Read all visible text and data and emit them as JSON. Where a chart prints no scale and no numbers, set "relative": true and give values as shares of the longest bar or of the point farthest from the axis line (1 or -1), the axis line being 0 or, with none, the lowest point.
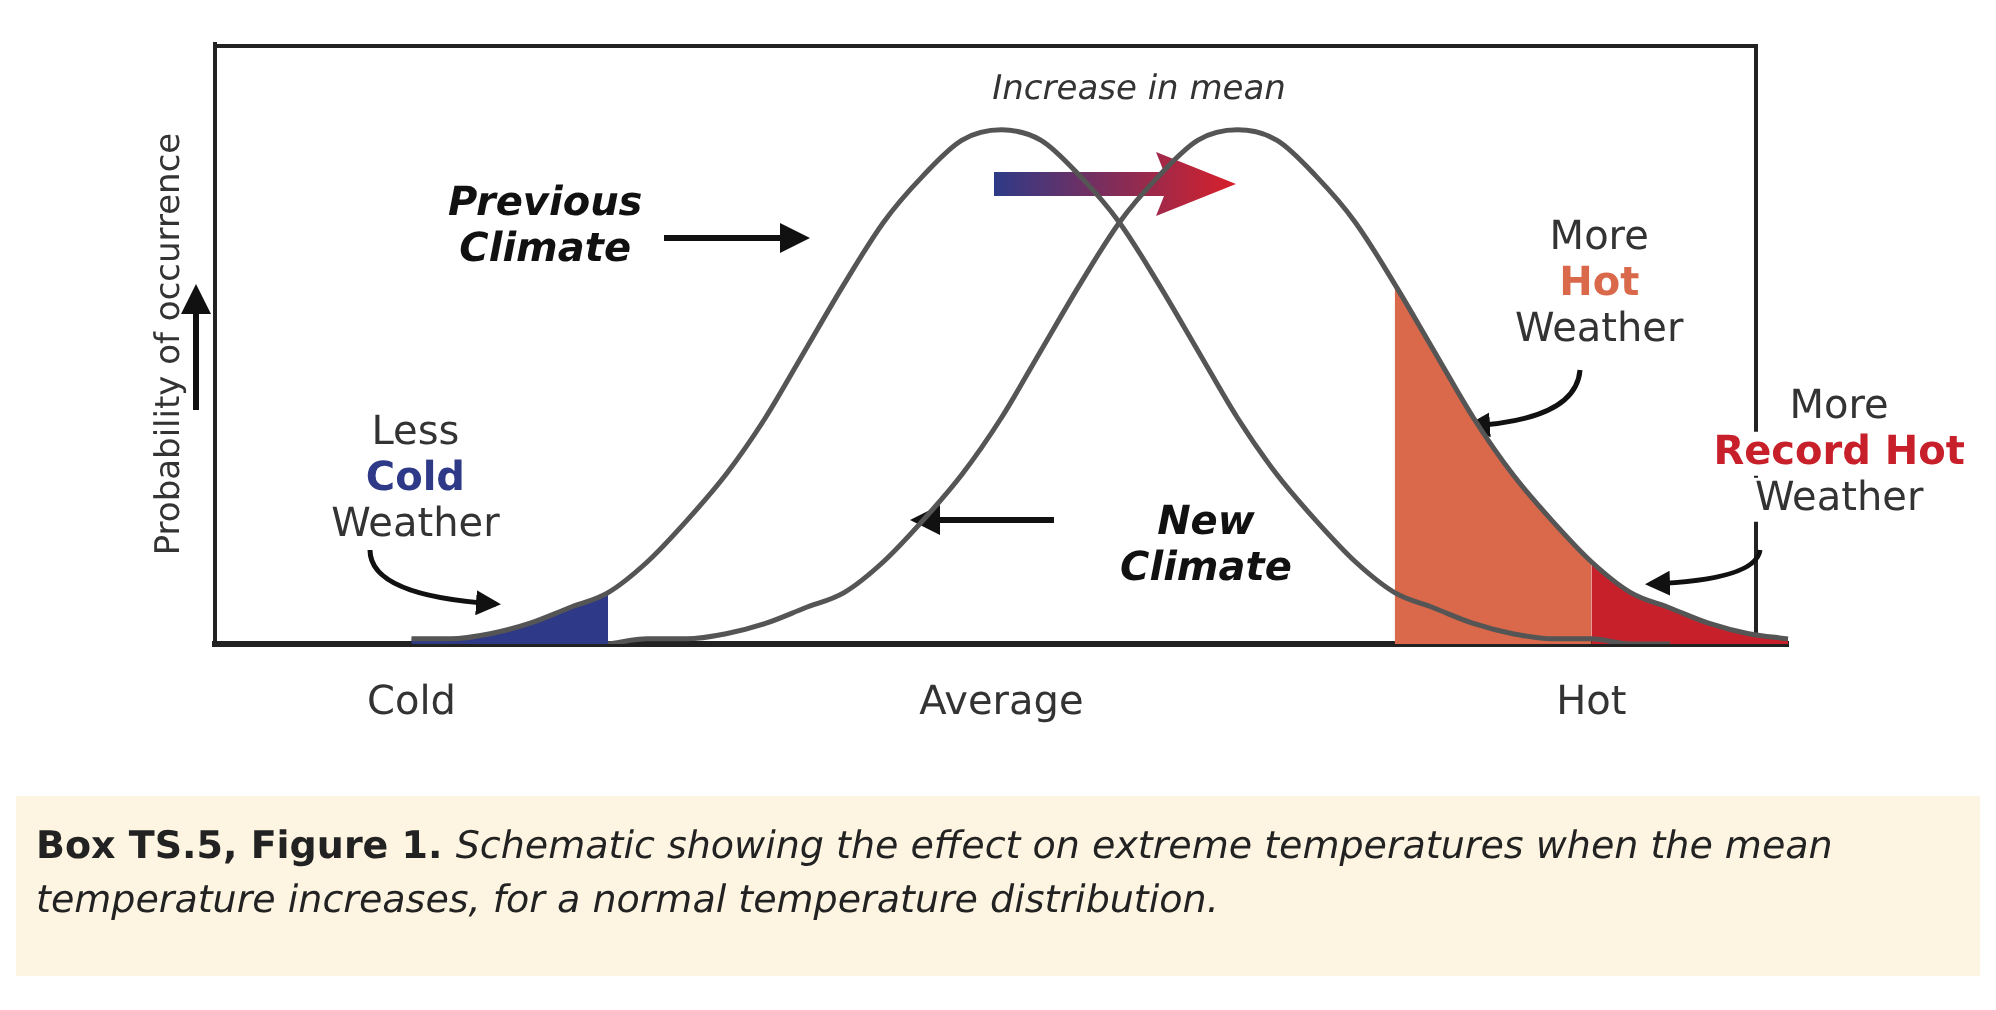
{
  "chart_data": {
    "type": "line",
    "relative": true,
    "ylabel": "Probability of occurrence",
    "categories": [
      null,
      null,
      null,
      null,
      null,
      "Cold",
      null,
      null,
      null,
      null,
      null,
      null,
      null,
      null,
      null,
      null,
      null,
      null,
      null,
      null,
      "Average",
      null,
      null,
      null,
      null,
      null,
      null,
      null,
      null,
      null,
      null,
      null,
      null,
      null,
      null,
      "Hot",
      null,
      null,
      null,
      null,
      null
    ],
    "series": [
      {
        "type": "area",
        "color": "#2e3a87",
        "values": [
          null,
          null,
          null,
          null,
          null,
          0.01,
          0.01,
          0.02,
          0.04,
          0.07,
          0.1,
          null,
          null,
          null,
          null,
          null,
          null,
          null,
          null,
          null,
          null,
          null,
          null,
          null,
          null,
          null,
          null,
          null,
          null,
          null,
          null,
          null,
          null,
          null,
          null,
          null,
          null,
          null,
          null,
          null,
          null
        ]
      },
      {
        "type": "area",
        "color": "#d9694a",
        "values": [
          null,
          null,
          null,
          null,
          null,
          null,
          null,
          null,
          null,
          null,
          null,
          null,
          null,
          null,
          null,
          null,
          null,
          null,
          null,
          null,
          null,
          null,
          null,
          null,
          null,
          null,
          null,
          null,
          null,
          null,
          0.7,
          0.57,
          0.44,
          0.33,
          0.24,
          0.16,
          null,
          null,
          null,
          null,
          null
        ]
      },
      {
        "type": "area",
        "color": "#c8202a",
        "values": [
          null,
          null,
          null,
          null,
          null,
          null,
          null,
          null,
          null,
          null,
          null,
          null,
          null,
          null,
          null,
          null,
          null,
          null,
          null,
          null,
          null,
          null,
          null,
          null,
          null,
          null,
          null,
          null,
          null,
          null,
          null,
          null,
          null,
          null,
          null,
          0.16,
          0.1,
          0.07,
          0.04,
          0.02,
          0.01
        ]
      },
      {
        "type": "line",
        "color": "#555555",
        "values": [
          null,
          null,
          null,
          null,
          null,
          0.01,
          0.01,
          0.02,
          0.04,
          0.07,
          0.1,
          0.16,
          0.24,
          0.33,
          0.44,
          0.57,
          0.7,
          0.82,
          0.91,
          0.98,
          1,
          0.98,
          0.91,
          0.82,
          0.7,
          0.57,
          0.44,
          0.33,
          0.24,
          0.16,
          0.1,
          0.07,
          0.04,
          0.02,
          0.01,
          0.01,
          0,
          0,
          null,
          null,
          null
        ]
      },
      {
        "type": "line",
        "color": "#555555",
        "values": [
          null,
          null,
          null,
          null,
          null,
          null,
          null,
          null,
          null,
          null,
          0,
          0.01,
          0.01,
          0.02,
          0.04,
          0.07,
          0.1,
          0.16,
          0.24,
          0.33,
          0.44,
          0.57,
          0.7,
          0.82,
          0.91,
          0.98,
          1,
          0.98,
          0.91,
          0.82,
          0.7,
          0.57,
          0.44,
          0.33,
          0.24,
          0.16,
          0.1,
          0.07,
          0.04,
          0.02,
          0.01
        ]
      }
    ],
    "annotations": [
      "Increase in mean",
      "Previous\nClimate",
      "New\nClimate",
      "Less\nCold\nWeather",
      "More\nHot\nWeather",
      "More\nRecord Hot\nWeather",
      "Box TS.5, Figure 1.",
      "Schematic showing the effect on extreme temperatures when the mean temperature increases, for a normal temperature distribution."
    ],
    "grid": false,
    "legend": false,
    "marker": "none",
    "tick_labels": "x"
  }
}
